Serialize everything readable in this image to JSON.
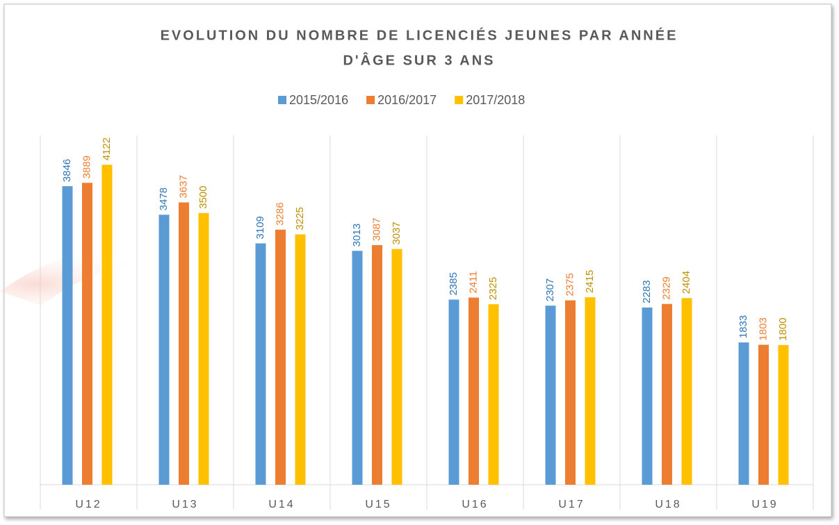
{
  "chart_data": {
    "type": "bar",
    "title": [
      "EVOLUTION DU NOMBRE DE LICENCIÉS JEUNES PAR ANNÉE",
      "D'ÂGE SUR 3 ANS"
    ],
    "categories": [
      "U12",
      "U13",
      "U14",
      "U15",
      "U16",
      "U17",
      "U18",
      "U19"
    ],
    "series": [
      {
        "name": "2015/2016",
        "color": "#5b9bd5",
        "label_color": "#2e75b6",
        "values": [
          3846,
          3478,
          3109,
          3013,
          2385,
          2307,
          2283,
          1833
        ]
      },
      {
        "name": "2016/2017",
        "color": "#ed7d31",
        "label_color": "#ed7d31",
        "values": [
          3889,
          3637,
          3286,
          3087,
          2411,
          2375,
          2329,
          1803
        ]
      },
      {
        "name": "2017/2018",
        "color": "#ffc000",
        "label_color": "#bf9000",
        "values": [
          4122,
          3500,
          3225,
          3037,
          2325,
          2415,
          2404,
          1800
        ]
      }
    ],
    "ylim": [
      0,
      4500
    ],
    "legend": "top"
  }
}
